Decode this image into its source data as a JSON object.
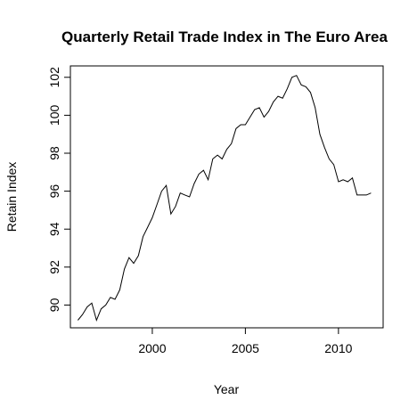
{
  "chart_data": {
    "type": "line",
    "title": "Quarterly Retail Trade Index in The Euro Area",
    "xlabel": "Year",
    "ylabel": "Retain Index",
    "xlim": [
      1995.6,
      2012.4
    ],
    "ylim": [
      88.8,
      102.6
    ],
    "x_ticks": [
      2000,
      2005,
      2010
    ],
    "x_tick_labels": [
      "2000",
      "2005",
      "2010"
    ],
    "y_ticks": [
      90,
      92,
      94,
      96,
      98,
      100,
      102
    ],
    "y_tick_labels": [
      "90",
      "92",
      "94",
      "96",
      "98",
      "100",
      "102"
    ],
    "grid": false,
    "series": [
      {
        "x": [
          1996.0,
          1996.25,
          1996.5,
          1996.75,
          1997.0,
          1997.25,
          1997.5,
          1997.75,
          1998.0,
          1998.25,
          1998.5,
          1998.75,
          1999.0,
          1999.25,
          1999.5,
          1999.75,
          2000.0,
          2000.25,
          2000.5,
          2000.75,
          2001.0,
          2001.25,
          2001.5,
          2001.75,
          2002.0,
          2002.25,
          2002.5,
          2002.75,
          2003.0,
          2003.25,
          2003.5,
          2003.75,
          2004.0,
          2004.25,
          2004.5,
          2004.75,
          2005.0,
          2005.25,
          2005.5,
          2005.75,
          2006.0,
          2006.25,
          2006.5,
          2006.75,
          2007.0,
          2007.25,
          2007.5,
          2007.75,
          2008.0,
          2008.25,
          2008.5,
          2008.75,
          2009.0,
          2009.25,
          2009.5,
          2009.75,
          2010.0,
          2010.25,
          2010.5,
          2010.75,
          2011.0,
          2011.25,
          2011.5,
          2011.75
        ],
        "values": [
          89.2,
          89.5,
          89.9,
          90.1,
          89.2,
          89.8,
          90.0,
          90.4,
          90.3,
          90.8,
          91.9,
          92.5,
          92.2,
          92.6,
          93.6,
          94.1,
          94.6,
          95.3,
          96.0,
          96.3,
          94.8,
          95.2,
          95.9,
          95.8,
          95.7,
          96.4,
          96.9,
          97.1,
          96.6,
          97.7,
          97.9,
          97.7,
          98.2,
          98.5,
          99.3,
          99.5,
          99.5,
          99.9,
          100.3,
          100.4,
          99.9,
          100.2,
          100.7,
          101.0,
          100.9,
          101.4,
          102.0,
          102.1,
          101.6,
          101.5,
          101.2,
          100.4,
          99.0,
          98.3,
          97.7,
          97.4,
          96.5,
          96.6,
          96.5,
          96.7,
          95.8,
          95.8,
          95.8,
          95.9
        ]
      }
    ]
  }
}
